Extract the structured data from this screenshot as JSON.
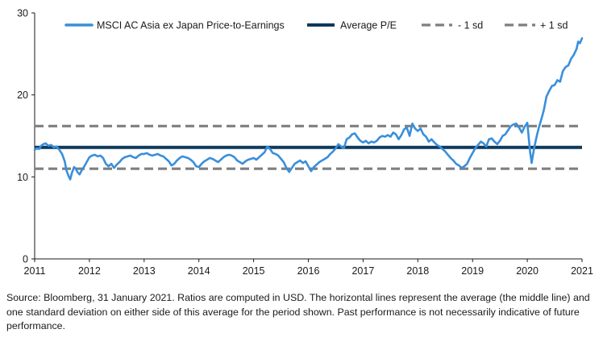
{
  "chart_data": {
    "type": "line",
    "title": "",
    "xlabel": "",
    "ylabel": "",
    "xlim": [
      2011,
      2021
    ],
    "ylim": [
      0,
      30
    ],
    "x_ticks": [
      2011,
      2012,
      2013,
      2014,
      2015,
      2016,
      2017,
      2018,
      2019,
      2020,
      2021
    ],
    "x_tick_labels": [
      "2011",
      "2012",
      "2013",
      "2014",
      "2015",
      "2016",
      "2017",
      "2018",
      "2019",
      "2020",
      "2021"
    ],
    "y_ticks": [
      0,
      10,
      20,
      30
    ],
    "y_tick_labels": [
      "0",
      "10",
      "20",
      "30"
    ],
    "grid": false,
    "legend_position": "top",
    "series": [
      {
        "name": "MSCI AC Asia ex Japan Price-to-Earnings",
        "style": "solid",
        "color": "#3a8fdb",
        "x": [
          2011.0,
          2011.04,
          2011.08,
          2011.12,
          2011.16,
          2011.2,
          2011.25,
          2011.3,
          2011.35,
          2011.4,
          2011.45,
          2011.5,
          2011.55,
          2011.58,
          2011.62,
          2011.65,
          2011.68,
          2011.72,
          2011.75,
          2011.78,
          2011.82,
          2011.86,
          2011.9,
          2011.95,
          2012.0,
          2012.05,
          2012.1,
          2012.15,
          2012.2,
          2012.25,
          2012.3,
          2012.35,
          2012.4,
          2012.45,
          2012.5,
          2012.55,
          2012.6,
          2012.65,
          2012.7,
          2012.75,
          2012.8,
          2012.85,
          2012.9,
          2012.95,
          2013.0,
          2013.05,
          2013.1,
          2013.15,
          2013.2,
          2013.25,
          2013.3,
          2013.35,
          2013.4,
          2013.45,
          2013.5,
          2013.55,
          2013.6,
          2013.65,
          2013.7,
          2013.75,
          2013.8,
          2013.85,
          2013.9,
          2013.95,
          2014.0,
          2014.05,
          2014.1,
          2014.15,
          2014.2,
          2014.25,
          2014.3,
          2014.35,
          2014.4,
          2014.45,
          2014.5,
          2014.55,
          2014.6,
          2014.65,
          2014.7,
          2014.75,
          2014.8,
          2014.85,
          2014.9,
          2014.95,
          2015.0,
          2015.05,
          2015.1,
          2015.15,
          2015.2,
          2015.25,
          2015.3,
          2015.35,
          2015.4,
          2015.45,
          2015.5,
          2015.55,
          2015.6,
          2015.65,
          2015.7,
          2015.75,
          2015.8,
          2015.85,
          2015.9,
          2015.95,
          2016.0,
          2016.05,
          2016.1,
          2016.15,
          2016.2,
          2016.25,
          2016.3,
          2016.35,
          2016.4,
          2016.45,
          2016.5,
          2016.55,
          2016.6,
          2016.65,
          2016.7,
          2016.75,
          2016.8,
          2016.85,
          2016.9,
          2016.95,
          2017.0,
          2017.05,
          2017.1,
          2017.15,
          2017.2,
          2017.25,
          2017.3,
          2017.35,
          2017.4,
          2017.45,
          2017.5,
          2017.55,
          2017.6,
          2017.65,
          2017.7,
          2017.75,
          2017.8,
          2017.85,
          2017.9,
          2017.95,
          2018.0,
          2018.05,
          2018.1,
          2018.15,
          2018.2,
          2018.25,
          2018.3,
          2018.35,
          2018.4,
          2018.45,
          2018.5,
          2018.55,
          2018.6,
          2018.65,
          2018.7,
          2018.75,
          2018.8,
          2018.85,
          2018.9,
          2018.95,
          2019.0,
          2019.05,
          2019.1,
          2019.15,
          2019.2,
          2019.25,
          2019.3,
          2019.35,
          2019.4,
          2019.45,
          2019.5,
          2019.55,
          2019.6,
          2019.65,
          2019.7,
          2019.75,
          2019.8,
          2019.85,
          2019.9,
          2019.95,
          2020.0,
          2020.05,
          2020.08,
          2020.12,
          2020.15,
          2020.18,
          2020.22,
          2020.25,
          2020.3,
          2020.35,
          2020.4,
          2020.45,
          2020.5,
          2020.55,
          2020.6,
          2020.65,
          2020.7,
          2020.75,
          2020.8,
          2020.85,
          2020.9,
          2020.93,
          2020.96,
          2021.0
        ],
        "y": [
          13.3,
          13.5,
          13.4,
          13.8,
          14.0,
          14.1,
          13.8,
          13.9,
          13.6,
          13.7,
          13.3,
          12.8,
          11.9,
          10.8,
          10.1,
          9.7,
          10.5,
          11.2,
          11.0,
          10.6,
          10.3,
          10.8,
          11.2,
          11.8,
          12.4,
          12.6,
          12.7,
          12.5,
          12.6,
          12.3,
          11.6,
          11.3,
          11.6,
          11.1,
          11.5,
          11.8,
          12.2,
          12.4,
          12.5,
          12.6,
          12.4,
          12.3,
          12.6,
          12.8,
          12.8,
          12.9,
          12.7,
          12.6,
          12.7,
          12.8,
          12.6,
          12.5,
          12.2,
          11.9,
          11.4,
          11.6,
          12.0,
          12.3,
          12.5,
          12.4,
          12.3,
          12.1,
          11.8,
          11.3,
          11.2,
          11.6,
          11.9,
          12.1,
          12.3,
          12.2,
          12.0,
          11.8,
          12.1,
          12.4,
          12.6,
          12.7,
          12.6,
          12.4,
          12.0,
          11.8,
          11.6,
          11.9,
          12.1,
          12.2,
          12.3,
          12.1,
          12.4,
          12.7,
          13.0,
          13.7,
          13.4,
          12.9,
          12.8,
          12.6,
          12.2,
          11.8,
          11.1,
          10.6,
          11.1,
          11.6,
          11.8,
          12.0,
          11.7,
          11.9,
          11.3,
          10.7,
          11.2,
          11.5,
          11.8,
          12.0,
          12.2,
          12.4,
          12.8,
          13.1,
          13.5,
          14.0,
          13.7,
          13.5,
          14.6,
          14.8,
          15.2,
          15.3,
          14.8,
          14.4,
          14.2,
          14.4,
          14.1,
          14.3,
          14.2,
          14.4,
          14.8,
          15.0,
          14.9,
          15.1,
          14.9,
          15.4,
          15.2,
          14.6,
          15.1,
          15.8,
          16.0,
          15.0,
          16.5,
          15.9,
          15.6,
          15.9,
          15.2,
          14.9,
          14.3,
          14.6,
          14.2,
          13.9,
          13.7,
          13.4,
          13.1,
          12.7,
          12.3,
          12.0,
          11.6,
          11.4,
          11.1,
          11.3,
          11.6,
          12.3,
          12.9,
          13.5,
          13.9,
          14.3,
          14.1,
          13.7,
          14.6,
          14.7,
          14.3,
          14.0,
          14.4,
          15.0,
          15.2,
          15.7,
          16.2,
          16.4,
          16.5,
          16.0,
          15.4,
          16.1,
          16.6,
          13.1,
          11.7,
          13.3,
          14.3,
          15.2,
          16.2,
          16.9,
          18.1,
          19.8,
          20.5,
          21.1,
          21.2,
          21.8,
          21.6,
          22.9,
          23.4,
          23.6,
          24.4,
          24.9,
          25.6,
          26.5,
          26.3,
          26.9
        ]
      },
      {
        "name": "Average P/E",
        "style": "solid-thick",
        "color": "#0e3a5c",
        "x": [
          2011,
          2021
        ],
        "y": [
          13.6,
          13.6
        ]
      },
      {
        "name": "- 1 sd",
        "style": "dashed",
        "color": "#7f7f7f",
        "x": [
          2011,
          2021
        ],
        "y": [
          11.0,
          11.0
        ]
      },
      {
        "name": "+ 1 sd",
        "style": "dashed",
        "color": "#7f7f7f",
        "x": [
          2011,
          2021
        ],
        "y": [
          16.2,
          16.2
        ]
      }
    ]
  },
  "source_note": "Source: Bloomberg, 31 January 2021. Ratios are computed in USD. The horizontal lines represent the average (the middle line) and one standard deviation on either side of this average for the period shown. Past performance is not necessarily indicative of future performance."
}
